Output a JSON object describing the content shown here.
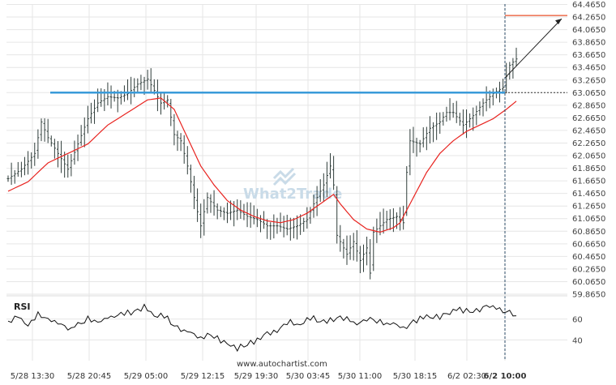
{
  "watermark": "What2Trade",
  "footer_url": "www.autochartist.com",
  "colors": {
    "candle": "#2f3d3a",
    "ma": "#e8231f",
    "resistance": "#3a9bd9",
    "forecast": "#e8502a",
    "arrow": "#222222",
    "rsi": "#111111",
    "grid": "#e6e6e6"
  },
  "chart_data": {
    "type": "line",
    "title": "",
    "ylim": [
      59.8,
      64.5
    ],
    "price_ticks": [
      "64.4650",
      "64.2650",
      "64.0650",
      "63.8650",
      "63.6650",
      "63.4650",
      "63.2650",
      "63.0650",
      "62.8650",
      "62.6650",
      "62.4650",
      "62.2650",
      "62.0650",
      "61.8650",
      "61.6650",
      "61.4650",
      "61.2650",
      "61.0650",
      "60.8650",
      "60.6650",
      "60.4650",
      "60.2650",
      "60.0650",
      "59.8650"
    ],
    "time_labels": [
      "5/28 13:30",
      "5/28 20:45",
      "5/29 05:00",
      "5/29 12:15",
      "5/29 19:30",
      "5/30 03:45",
      "5/30 11:00",
      "5/30 18:15",
      "6/2 02:30",
      "6/2 10:00"
    ],
    "levels": {
      "resistance": 63.065,
      "forecast_target": 64.29,
      "breakout_start": 63.3,
      "current": 63.065
    },
    "price_anchors": [
      [
        0,
        61.7
      ],
      [
        4,
        61.85
      ],
      [
        8,
        62.1
      ],
      [
        10,
        62.6
      ],
      [
        12,
        62.35
      ],
      [
        15,
        62.1
      ],
      [
        18,
        61.85
      ],
      [
        21,
        62.25
      ],
      [
        24,
        62.65
      ],
      [
        27,
        62.9
      ],
      [
        30,
        63.0
      ],
      [
        33,
        62.98
      ],
      [
        36,
        63.05
      ],
      [
        39,
        63.2
      ],
      [
        42,
        63.28
      ],
      [
        44,
        63.1
      ],
      [
        46,
        62.9
      ],
      [
        48,
        62.95
      ],
      [
        50,
        62.4
      ],
      [
        52,
        62.3
      ],
      [
        54,
        61.9
      ],
      [
        56,
        61.4
      ],
      [
        58,
        60.95
      ],
      [
        60,
        61.4
      ],
      [
        63,
        61.2
      ],
      [
        66,
        61.15
      ],
      [
        69,
        61.2
      ],
      [
        72,
        61.1
      ],
      [
        75,
        61.05
      ],
      [
        78,
        60.95
      ],
      [
        81,
        60.95
      ],
      [
        84,
        60.9
      ],
      [
        87,
        60.95
      ],
      [
        90,
        61.05
      ],
      [
        92,
        61.3
      ],
      [
        95,
        61.6
      ],
      [
        97,
        61.9
      ],
      [
        98,
        61.6
      ],
      [
        99,
        60.8
      ],
      [
        100,
        60.7
      ],
      [
        102,
        60.5
      ],
      [
        104,
        60.7
      ],
      [
        106,
        60.4
      ],
      [
        108,
        60.6
      ],
      [
        109,
        60.2
      ],
      [
        110,
        60.85
      ],
      [
        112,
        60.95
      ],
      [
        114,
        61.05
      ],
      [
        117,
        61.1
      ],
      [
        119,
        61.0
      ],
      [
        120,
        61.8
      ],
      [
        121,
        62.3
      ],
      [
        124,
        62.25
      ],
      [
        127,
        62.5
      ],
      [
        130,
        62.6
      ],
      [
        132,
        62.75
      ],
      [
        134,
        62.75
      ],
      [
        137,
        62.55
      ],
      [
        140,
        62.7
      ],
      [
        143,
        62.9
      ],
      [
        146,
        63.05
      ],
      [
        149,
        63.15
      ],
      [
        151,
        63.5
      ],
      [
        153,
        63.6
      ]
    ],
    "ma_anchors": [
      [
        0,
        61.5
      ],
      [
        6,
        61.65
      ],
      [
        12,
        61.95
      ],
      [
        18,
        62.1
      ],
      [
        24,
        62.25
      ],
      [
        30,
        62.55
      ],
      [
        36,
        62.75
      ],
      [
        42,
        62.95
      ],
      [
        46,
        62.98
      ],
      [
        50,
        62.8
      ],
      [
        54,
        62.35
      ],
      [
        58,
        61.9
      ],
      [
        62,
        61.6
      ],
      [
        66,
        61.35
      ],
      [
        70,
        61.2
      ],
      [
        74,
        61.1
      ],
      [
        78,
        61.03
      ],
      [
        82,
        61.0
      ],
      [
        86,
        61.05
      ],
      [
        90,
        61.15
      ],
      [
        94,
        61.3
      ],
      [
        98,
        61.45
      ],
      [
        100,
        61.3
      ],
      [
        104,
        61.05
      ],
      [
        108,
        60.9
      ],
      [
        112,
        60.85
      ],
      [
        116,
        60.92
      ],
      [
        118,
        61.0
      ],
      [
        122,
        61.4
      ],
      [
        126,
        61.8
      ],
      [
        130,
        62.1
      ],
      [
        134,
        62.3
      ],
      [
        138,
        62.45
      ],
      [
        142,
        62.55
      ],
      [
        146,
        62.65
      ],
      [
        150,
        62.8
      ],
      [
        153,
        62.93
      ]
    ],
    "rsi_anchors": [
      [
        0,
        58
      ],
      [
        3,
        62
      ],
      [
        6,
        55
      ],
      [
        9,
        64
      ],
      [
        12,
        60
      ],
      [
        15,
        56
      ],
      [
        18,
        50
      ],
      [
        21,
        54
      ],
      [
        24,
        60
      ],
      [
        27,
        58
      ],
      [
        30,
        62
      ],
      [
        33,
        63
      ],
      [
        36,
        66
      ],
      [
        39,
        68
      ],
      [
        41,
        72
      ],
      [
        43,
        65
      ],
      [
        45,
        62
      ],
      [
        47,
        64
      ],
      [
        49,
        58
      ],
      [
        51,
        52
      ],
      [
        54,
        48
      ],
      [
        56,
        45
      ],
      [
        58,
        40
      ],
      [
        60,
        44
      ],
      [
        63,
        41
      ],
      [
        66,
        37
      ],
      [
        69,
        32
      ],
      [
        72,
        36
      ],
      [
        75,
        40
      ],
      [
        78,
        46
      ],
      [
        81,
        48
      ],
      [
        83,
        54
      ],
      [
        85,
        57
      ],
      [
        87,
        53
      ],
      [
        89,
        58
      ],
      [
        92,
        61
      ],
      [
        95,
        57
      ],
      [
        98,
        60
      ],
      [
        101,
        61
      ],
      [
        104,
        56
      ],
      [
        107,
        58
      ],
      [
        110,
        60
      ],
      [
        113,
        56
      ],
      [
        116,
        54
      ],
      [
        119,
        51
      ],
      [
        121,
        55
      ],
      [
        124,
        60
      ],
      [
        127,
        64
      ],
      [
        130,
        62
      ],
      [
        133,
        67
      ],
      [
        136,
        70
      ],
      [
        139,
        66
      ],
      [
        142,
        68
      ],
      [
        145,
        72
      ],
      [
        148,
        70
      ],
      [
        150,
        68
      ],
      [
        152,
        66
      ],
      [
        153,
        63
      ]
    ],
    "rsi_levels": [
      60,
      40
    ],
    "rsi_range": [
      20,
      80
    ],
    "rsi_label": "RSI"
  }
}
